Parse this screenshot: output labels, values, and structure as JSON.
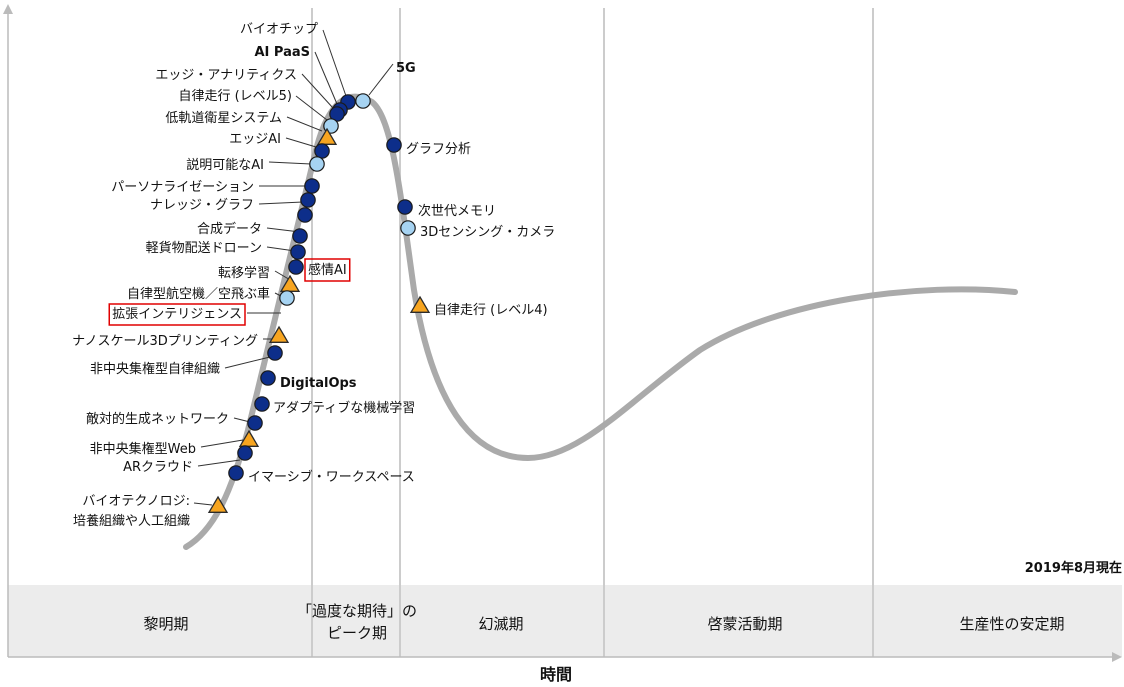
{
  "chart_data": {
    "type": "hype-cycle",
    "xlabel": "時間",
    "note": "2019年8月現在",
    "colors": {
      "curve": "#aaaaaa",
      "dark_circle": "#0d2e8a",
      "light_circle": "#a6d3f2",
      "triangle": "#f7a520",
      "highlight": "#e00000",
      "phase_band": "#ececec",
      "divider": "#cccccc"
    },
    "legend_marks": {
      "dark_circle": "",
      "light_circle": "",
      "triangle": ""
    },
    "phases": [
      {
        "label": "黎明期"
      },
      {
        "label": "「過度な期待」の\nピーク期"
      },
      {
        "label": "幻滅期"
      },
      {
        "label": "啓蒙活動期"
      },
      {
        "label": "生産性の安定期"
      }
    ],
    "technologies": [
      {
        "label": "バイオチップ",
        "bold": false,
        "marker": "dark_circle",
        "side": "left"
      },
      {
        "label": "AI PaaS",
        "bold": true,
        "marker": "dark_circle",
        "side": "left"
      },
      {
        "label": "5G",
        "bold": true,
        "marker": "light_circle",
        "side": "right-top"
      },
      {
        "label": "エッジ・アナリティクス",
        "bold": false,
        "marker": "dark_circle",
        "side": "left"
      },
      {
        "label": "自律走行 (レベル5)",
        "bold": false,
        "marker": "light_circle",
        "side": "left"
      },
      {
        "label": "低軌道衛星システム",
        "bold": false,
        "marker": "triangle",
        "side": "left"
      },
      {
        "label": "エッジAI",
        "bold": false,
        "marker": "dark_circle",
        "side": "left"
      },
      {
        "label": "説明可能なAI",
        "bold": false,
        "marker": "light_circle",
        "side": "left"
      },
      {
        "label": "パーソナライゼーション",
        "bold": false,
        "marker": "dark_circle",
        "side": "left"
      },
      {
        "label": "ナレッジ・グラフ",
        "bold": false,
        "marker": "dark_circle",
        "side": "left"
      },
      {
        "label": "合成データ",
        "bold": false,
        "marker": "dark_circle",
        "side": "left"
      },
      {
        "label": "軽貨物配送ドローン",
        "bold": false,
        "marker": "dark_circle",
        "side": "left"
      },
      {
        "label": "感情AI",
        "bold": false,
        "marker": "dark_circle",
        "side": "right-box"
      },
      {
        "label": "転移学習",
        "bold": false,
        "marker": "dark_circle",
        "side": "left"
      },
      {
        "label": "自律型航空機／空飛ぶ車",
        "bold": false,
        "marker": "triangle",
        "side": "left"
      },
      {
        "label": "拡張インテリジェンス",
        "bold": false,
        "marker": "light_circle",
        "side": "left-box"
      },
      {
        "label": "ナノスケール3Dプリンティング",
        "bold": false,
        "marker": "triangle",
        "side": "left"
      },
      {
        "label": "非中央集権型自律組織",
        "bold": false,
        "marker": "dark_circle",
        "side": "left"
      },
      {
        "label": "DigitalOps",
        "bold": true,
        "marker": "dark_circle",
        "side": "right"
      },
      {
        "label": "アダプティブな機械学習",
        "bold": false,
        "marker": "dark_circle",
        "side": "right"
      },
      {
        "label": "敵対的生成ネットワーク",
        "bold": false,
        "marker": "dark_circle",
        "side": "left"
      },
      {
        "label": "非中央集権型Web",
        "bold": false,
        "marker": "triangle",
        "side": "left"
      },
      {
        "label": "ARクラウド",
        "bold": false,
        "marker": "dark_circle",
        "side": "left"
      },
      {
        "label": "イマーシブ・ワークスペース",
        "bold": false,
        "marker": "dark_circle",
        "side": "right"
      },
      {
        "label": "バイオテクノロジ:\n培養組織や人工組織",
        "bold": false,
        "marker": "triangle",
        "side": "left"
      },
      {
        "label": "グラフ分析",
        "bold": false,
        "marker": "dark_circle",
        "side": "right"
      },
      {
        "label": "次世代メモリ",
        "bold": false,
        "marker": "dark_circle",
        "side": "right"
      },
      {
        "label": "3Dセンシング・カメラ",
        "bold": false,
        "marker": "light_circle",
        "side": "right"
      },
      {
        "label": "自律走行 (レベル4)",
        "bold": false,
        "marker": "triangle",
        "side": "right"
      }
    ]
  }
}
